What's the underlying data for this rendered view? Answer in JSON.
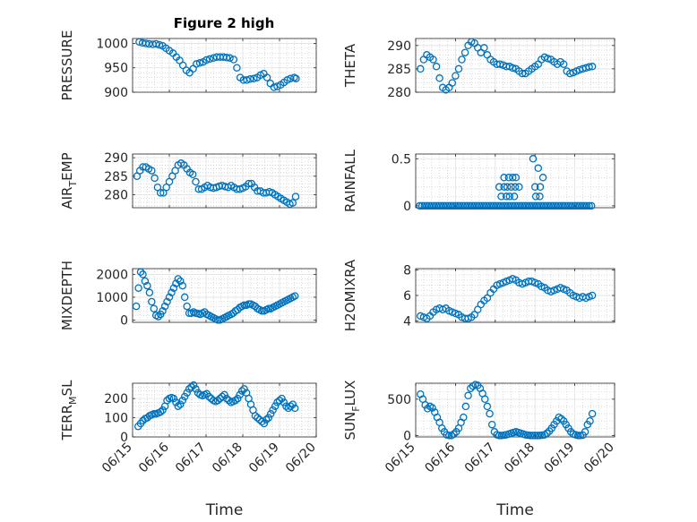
{
  "figure": {
    "title": "Figure 2 high",
    "marker_color": "#0072BD",
    "xtick_labels": [
      "06/15",
      "06/16",
      "06/17",
      "06/18",
      "06/19",
      "06/20"
    ],
    "xlabel": "Time"
  },
  "chart_data": [
    {
      "type": "scatter",
      "ylabel": "PRESSURE",
      "ylabel_sub": "",
      "ylabel_sub_suffix": "",
      "title": "Figure 2 high",
      "xlim": [
        0,
        5
      ],
      "ylim": [
        900,
        1010
      ],
      "yticks": [
        900,
        950,
        1000
      ],
      "x": [
        0.18,
        0.27,
        0.36,
        0.45,
        0.55,
        0.64,
        0.73,
        0.82,
        0.91,
        1.0,
        1.1,
        1.19,
        1.28,
        1.37,
        1.46,
        1.55,
        1.65,
        1.74,
        1.83,
        1.92,
        2.01,
        2.1,
        2.2,
        2.29,
        2.38,
        2.47,
        2.56,
        2.65,
        2.75,
        2.84,
        2.93,
        3.02,
        3.11,
        3.2,
        3.3,
        3.39,
        3.48,
        3.57,
        3.66,
        3.75,
        3.85,
        3.94,
        4.03,
        4.12,
        4.21,
        4.3,
        4.4,
        4.45
      ],
      "y": [
        1003,
        1001,
        1000,
        999,
        998,
        999,
        997,
        995,
        990,
        985,
        980,
        972,
        965,
        955,
        945,
        940,
        948,
        958,
        960,
        962,
        966,
        968,
        970,
        972,
        972,
        972,
        971,
        970,
        967,
        950,
        930,
        925,
        925,
        927,
        928,
        930,
        935,
        938,
        930,
        918,
        910,
        912,
        915,
        920,
        925,
        928,
        930,
        928
      ]
    },
    {
      "type": "scatter",
      "ylabel": "THETA",
      "ylabel_sub": "",
      "ylabel_sub_suffix": "",
      "xlim": [
        0,
        5
      ],
      "ylim": [
        280,
        291.5
      ],
      "yticks": [
        280,
        285,
        290
      ],
      "x": [
        0.12,
        0.2,
        0.28,
        0.36,
        0.44,
        0.52,
        0.6,
        0.68,
        0.76,
        0.84,
        0.92,
        1.0,
        1.08,
        1.16,
        1.24,
        1.32,
        1.4,
        1.48,
        1.56,
        1.64,
        1.72,
        1.8,
        1.88,
        1.96,
        2.04,
        2.12,
        2.2,
        2.28,
        2.36,
        2.44,
        2.52,
        2.6,
        2.68,
        2.76,
        2.84,
        2.92,
        3.0,
        3.08,
        3.16,
        3.24,
        3.32,
        3.4,
        3.48,
        3.56,
        3.64,
        3.72,
        3.8,
        3.88,
        3.96,
        4.04,
        4.12,
        4.2,
        4.28,
        4.36,
        4.44
      ],
      "y": [
        285,
        287,
        288,
        287.5,
        287,
        285.5,
        283,
        281,
        280.5,
        281,
        282,
        283.5,
        285,
        287,
        288.5,
        290,
        290.8,
        290.5,
        289.5,
        288.5,
        289.5,
        288,
        287,
        286.5,
        286,
        286,
        285.8,
        285.5,
        285.5,
        285.2,
        285,
        284.5,
        284,
        284,
        284.5,
        285,
        285.5,
        286,
        287,
        287.5,
        287.2,
        287,
        286.5,
        286,
        286.5,
        286,
        284.5,
        284,
        284.2,
        284.5,
        284.8,
        285,
        285.2,
        285.4,
        285.5
      ]
    },
    {
      "type": "scatter",
      "ylabel": "AIR",
      "ylabel_sub": "T",
      "ylabel_sub_suffix": "EMP",
      "xlim": [
        0,
        5
      ],
      "ylim": [
        276.5,
        291
      ],
      "yticks": [
        280,
        285,
        290
      ],
      "x": [
        0.12,
        0.2,
        0.28,
        0.36,
        0.44,
        0.52,
        0.6,
        0.68,
        0.76,
        0.84,
        0.92,
        1.0,
        1.08,
        1.16,
        1.24,
        1.32,
        1.4,
        1.48,
        1.56,
        1.64,
        1.72,
        1.8,
        1.88,
        1.96,
        2.04,
        2.12,
        2.2,
        2.28,
        2.36,
        2.44,
        2.52,
        2.6,
        2.68,
        2.76,
        2.84,
        2.92,
        3.0,
        3.08,
        3.16,
        3.24,
        3.32,
        3.4,
        3.48,
        3.56,
        3.64,
        3.72,
        3.8,
        3.88,
        3.96,
        4.04,
        4.12,
        4.2,
        4.28,
        4.36,
        4.44
      ],
      "y": [
        285,
        286.5,
        287.5,
        287.5,
        287,
        286.5,
        284.5,
        282,
        280.5,
        280.5,
        282,
        283.5,
        285,
        286.5,
        288,
        288.5,
        288,
        287,
        286,
        285.5,
        283.5,
        281.5,
        281.5,
        282,
        282.5,
        282,
        281.8,
        282,
        282.3,
        282.5,
        282.2,
        282,
        282.5,
        282,
        281.5,
        281.5,
        281.8,
        282.2,
        283,
        283,
        282,
        281,
        281,
        280.5,
        280.5,
        280.8,
        280.5,
        280,
        279.5,
        279,
        278.5,
        278,
        277.5,
        277.8,
        279.5
      ]
    },
    {
      "type": "scatter",
      "ylabel": "RAINFALL",
      "ylabel_sub": "",
      "ylabel_sub_suffix": "",
      "xlim": [
        0,
        5
      ],
      "ylim": [
        -0.02,
        0.55
      ],
      "yticks": [
        0,
        0.5
      ],
      "x": [
        0.1,
        0.16,
        0.22,
        0.28,
        0.34,
        0.4,
        0.46,
        0.52,
        0.58,
        0.64,
        0.7,
        0.76,
        0.82,
        0.88,
        0.94,
        1.0,
        1.06,
        1.12,
        1.18,
        1.24,
        1.3,
        1.36,
        1.42,
        1.48,
        1.54,
        1.6,
        1.66,
        1.72,
        1.78,
        1.84,
        1.9,
        1.96,
        2.02,
        2.08,
        2.14,
        2.2,
        2.26,
        2.32,
        2.38,
        2.44,
        2.5,
        2.56,
        2.62,
        2.68,
        2.74,
        2.8,
        2.86,
        2.92,
        2.98,
        3.04,
        3.1,
        3.16,
        3.22,
        3.28,
        3.34,
        3.4,
        3.46,
        3.52,
        3.58,
        3.64,
        3.7,
        3.76,
        3.82,
        3.88,
        3.94,
        4.0,
        4.06,
        4.12,
        4.18,
        4.24,
        4.3,
        4.36,
        4.42,
        2.1,
        2.22,
        2.3,
        2.4,
        2.5,
        2.6,
        2.15,
        2.28,
        2.36,
        2.48,
        2.22,
        2.34,
        2.44,
        2.52,
        2.95,
        3.08,
        3.2,
        3.0,
        3.13,
        3.02,
        3.12
      ],
      "y": [
        0,
        0,
        0,
        0,
        0,
        0,
        0,
        0,
        0,
        0,
        0,
        0,
        0,
        0,
        0,
        0,
        0,
        0,
        0,
        0,
        0,
        0,
        0,
        0,
        0,
        0,
        0,
        0,
        0,
        0,
        0,
        0,
        0,
        0,
        0,
        0,
        0,
        0,
        0,
        0,
        0,
        0,
        0,
        0,
        0,
        0,
        0,
        0,
        0,
        0,
        0,
        0,
        0,
        0,
        0,
        0,
        0,
        0,
        0,
        0,
        0,
        0,
        0,
        0,
        0,
        0,
        0,
        0,
        0,
        0,
        0,
        0,
        0,
        0.2,
        0.2,
        0.2,
        0.2,
        0.2,
        0.2,
        0.1,
        0.1,
        0.1,
        0.1,
        0.3,
        0.3,
        0.3,
        0.3,
        0.5,
        0.4,
        0.3,
        0.2,
        0.2,
        0.1,
        0.1
      ]
    },
    {
      "type": "scatter",
      "ylabel": "MIXDEPTH",
      "ylabel_sub": "",
      "ylabel_sub_suffix": "",
      "xlim": [
        0,
        5
      ],
      "ylim": [
        -100,
        2250
      ],
      "yticks": [
        0,
        1000,
        2000
      ],
      "x": [
        0.1,
        0.16,
        0.22,
        0.28,
        0.34,
        0.4,
        0.46,
        0.52,
        0.58,
        0.64,
        0.7,
        0.76,
        0.82,
        0.88,
        0.94,
        1.0,
        1.06,
        1.12,
        1.18,
        1.24,
        1.3,
        1.36,
        1.42,
        1.48,
        1.54,
        1.6,
        1.66,
        1.72,
        1.78,
        1.84,
        1.9,
        1.96,
        2.02,
        2.08,
        2.14,
        2.2,
        2.26,
        2.32,
        2.38,
        2.44,
        2.5,
        2.56,
        2.62,
        2.68,
        2.74,
        2.8,
        2.86,
        2.92,
        2.98,
        3.04,
        3.1,
        3.16,
        3.22,
        3.28,
        3.34,
        3.4,
        3.46,
        3.52,
        3.58,
        3.64,
        3.7,
        3.76,
        3.82,
        3.88,
        3.94,
        4.0,
        4.06,
        4.12,
        4.18,
        4.24,
        4.3,
        4.36,
        4.42
      ],
      "y": [
        600,
        1400,
        2100,
        2000,
        1700,
        1500,
        1200,
        800,
        500,
        200,
        150,
        250,
        400,
        600,
        800,
        1000,
        1200,
        1400,
        1600,
        1800,
        1700,
        1500,
        1000,
        600,
        300,
        300,
        350,
        300,
        280,
        250,
        300,
        350,
        250,
        200,
        150,
        100,
        50,
        0,
        0,
        50,
        100,
        150,
        200,
        250,
        300,
        400,
        450,
        550,
        600,
        650,
        650,
        700,
        700,
        650,
        600,
        500,
        450,
        400,
        400,
        450,
        500,
        500,
        550,
        600,
        650,
        700,
        750,
        800,
        850,
        900,
        950,
        1000,
        1050
      ]
    },
    {
      "type": "scatter",
      "ylabel": "H2OMIXRA",
      "ylabel_sub": "",
      "ylabel_sub_suffix": "",
      "xlim": [
        0,
        5
      ],
      "ylim": [
        3.9,
        8.1
      ],
      "yticks": [
        4,
        6,
        8
      ],
      "x": [
        0.12,
        0.2,
        0.28,
        0.36,
        0.44,
        0.52,
        0.6,
        0.68,
        0.76,
        0.84,
        0.92,
        1.0,
        1.08,
        1.16,
        1.24,
        1.32,
        1.4,
        1.48,
        1.56,
        1.64,
        1.72,
        1.8,
        1.88,
        1.96,
        2.04,
        2.12,
        2.2,
        2.28,
        2.36,
        2.44,
        2.52,
        2.6,
        2.68,
        2.76,
        2.84,
        2.92,
        3.0,
        3.08,
        3.16,
        3.24,
        3.32,
        3.4,
        3.48,
        3.56,
        3.64,
        3.72,
        3.8,
        3.88,
        3.96,
        4.04,
        4.12,
        4.2,
        4.28,
        4.36,
        4.44
      ],
      "y": [
        4.4,
        4.3,
        4.2,
        4.4,
        4.7,
        4.9,
        5.0,
        4.9,
        5.0,
        4.8,
        4.7,
        4.6,
        4.5,
        4.3,
        4.2,
        4.2,
        4.3,
        4.5,
        4.9,
        5.3,
        5.6,
        5.8,
        6.2,
        6.5,
        6.8,
        6.9,
        7.0,
        7.1,
        7.2,
        7.3,
        7.2,
        7.0,
        6.9,
        7.0,
        7.1,
        7.1,
        7.0,
        6.9,
        6.7,
        6.6,
        6.4,
        6.3,
        6.4,
        6.5,
        6.6,
        6.5,
        6.4,
        6.2,
        6.0,
        5.9,
        5.8,
        5.9,
        5.8,
        5.9,
        6.0
      ]
    },
    {
      "type": "scatter",
      "ylabel": "TERR",
      "ylabel_sub": "M",
      "ylabel_sub_suffix": "SL",
      "xlim": [
        0,
        5
      ],
      "ylim": [
        0,
        280
      ],
      "yticks": [
        0,
        100,
        200
      ],
      "x": [
        0.15,
        0.22,
        0.28,
        0.34,
        0.4,
        0.46,
        0.52,
        0.58,
        0.64,
        0.7,
        0.76,
        0.82,
        0.88,
        0.94,
        1.0,
        1.06,
        1.12,
        1.18,
        1.24,
        1.3,
        1.36,
        1.42,
        1.48,
        1.54,
        1.6,
        1.66,
        1.72,
        1.78,
        1.84,
        1.9,
        1.96,
        2.02,
        2.08,
        2.14,
        2.2,
        2.26,
        2.32,
        2.38,
        2.44,
        2.5,
        2.56,
        2.62,
        2.68,
        2.74,
        2.8,
        2.86,
        2.92,
        2.98,
        3.04,
        3.1,
        3.16,
        3.22,
        3.28,
        3.34,
        3.4,
        3.46,
        3.52,
        3.58,
        3.64,
        3.7,
        3.76,
        3.82,
        3.88,
        3.94,
        4.0,
        4.06,
        4.12,
        4.18,
        4.24,
        4.3,
        4.36,
        4.42
      ],
      "y": [
        55,
        70,
        85,
        95,
        100,
        110,
        115,
        120,
        120,
        125,
        130,
        140,
        160,
        190,
        200,
        205,
        200,
        180,
        160,
        170,
        190,
        210,
        230,
        250,
        260,
        270,
        250,
        230,
        220,
        215,
        220,
        225,
        210,
        200,
        190,
        185,
        190,
        200,
        210,
        220,
        200,
        190,
        180,
        185,
        190,
        200,
        220,
        240,
        250,
        230,
        200,
        170,
        140,
        110,
        100,
        90,
        80,
        70,
        90,
        100,
        120,
        140,
        160,
        180,
        190,
        200,
        180,
        160,
        150,
        160,
        170,
        150
      ]
    },
    {
      "type": "scatter",
      "ylabel": "SUN",
      "ylabel_sub": "F",
      "ylabel_sub_suffix": "LUX",
      "xlim": [
        0,
        5
      ],
      "ylim": [
        -20,
        720
      ],
      "yticks": [
        0,
        500
      ],
      "x": [
        0.12,
        0.18,
        0.24,
        0.3,
        0.36,
        0.42,
        0.48,
        0.54,
        0.6,
        0.66,
        0.72,
        0.78,
        0.84,
        0.9,
        0.96,
        1.02,
        1.08,
        1.14,
        1.2,
        1.26,
        1.32,
        1.38,
        1.44,
        1.5,
        1.56,
        1.62,
        1.68,
        1.74,
        1.8,
        1.86,
        1.92,
        1.98,
        2.04,
        2.1,
        2.16,
        2.22,
        2.28,
        2.34,
        2.4,
        2.46,
        2.52,
        2.58,
        2.64,
        2.7,
        2.76,
        2.82,
        2.88,
        2.94,
        3.0,
        3.06,
        3.12,
        3.18,
        3.24,
        3.3,
        3.36,
        3.42,
        3.48,
        3.54,
        3.6,
        3.66,
        3.72,
        3.78,
        3.84,
        3.9,
        3.96,
        4.02,
        4.08,
        4.14,
        4.2,
        4.26,
        4.32,
        4.38,
        4.44
      ],
      "y": [
        570,
        500,
        420,
        370,
        400,
        380,
        320,
        250,
        180,
        100,
        50,
        10,
        0,
        0,
        20,
        50,
        100,
        180,
        250,
        400,
        550,
        650,
        680,
        700,
        690,
        650,
        580,
        500,
        400,
        300,
        150,
        50,
        10,
        0,
        0,
        5,
        10,
        20,
        30,
        40,
        50,
        40,
        30,
        20,
        10,
        5,
        0,
        0,
        0,
        0,
        0,
        5,
        10,
        30,
        60,
        100,
        150,
        200,
        250,
        230,
        200,
        150,
        100,
        50,
        20,
        10,
        0,
        0,
        5,
        50,
        150,
        200,
        300
      ]
    }
  ]
}
